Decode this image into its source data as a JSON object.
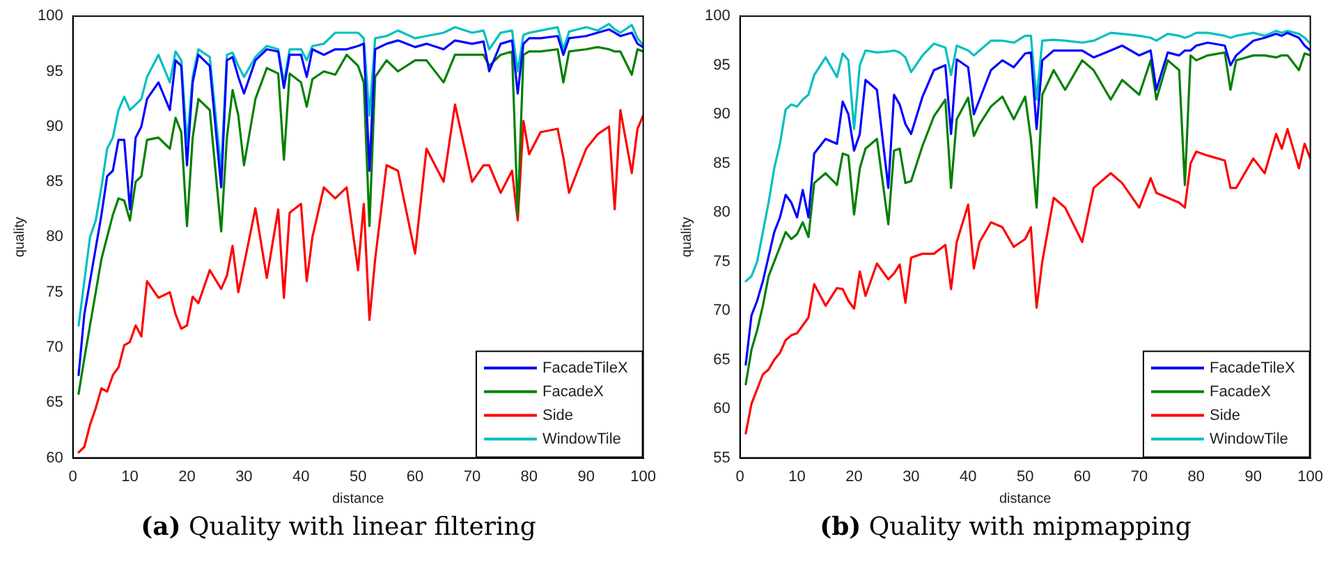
{
  "chart_data": [
    {
      "type": "line",
      "title": "(a) Quality with linear filtering",
      "xlabel": "distance",
      "ylabel": "quality",
      "legend": "bottom right",
      "grid": false,
      "marker": "none",
      "line_style": "solid",
      "xlim": [
        0,
        100
      ],
      "xticks": [
        0,
        10,
        20,
        30,
        40,
        50,
        60,
        70,
        80,
        90,
        100
      ],
      "ylim": [
        60,
        100
      ],
      "yticks": [
        60,
        65,
        70,
        75,
        80,
        85,
        90,
        95,
        100
      ],
      "x": [
        1,
        2,
        3,
        4,
        5,
        6,
        7,
        8,
        9,
        10,
        11,
        12,
        13,
        15,
        17,
        18,
        19,
        20,
        21,
        22,
        24,
        26,
        27,
        28,
        29,
        30,
        32,
        34,
        36,
        37,
        38,
        40,
        41,
        42,
        44,
        46,
        48,
        50,
        51,
        52,
        53,
        55,
        57,
        60,
        62,
        65,
        67,
        70,
        72,
        73,
        75,
        77,
        78,
        79,
        80,
        82,
        85,
        86,
        87,
        90,
        92,
        94,
        95,
        96,
        98,
        99,
        100
      ],
      "series": [
        {
          "name": "FacadeTileX",
          "color": "#0000ff",
          "values": [
            67.5,
            73,
            76,
            79,
            82,
            85.5,
            86,
            88.8,
            88.8,
            82.5,
            89,
            90,
            92.5,
            94,
            91.5,
            96,
            95.5,
            86.5,
            94,
            96.5,
            95.5,
            84.5,
            96,
            96.3,
            94.5,
            93,
            96,
            97,
            96.8,
            93.5,
            96.5,
            96.5,
            94.5,
            97,
            96.5,
            97,
            97,
            97.3,
            97.5,
            86,
            97,
            97.5,
            97.8,
            97.2,
            97.5,
            97,
            97.8,
            97.5,
            97.7,
            95,
            97.5,
            97.8,
            93,
            97.5,
            98,
            98,
            98.2,
            96.5,
            98,
            98.2,
            98.5,
            98.8,
            98.5,
            98.2,
            98.5,
            97.5,
            97.2
          ]
        },
        {
          "name": "FacadeX",
          "color": "#008000",
          "values": [
            65.8,
            69,
            72,
            75,
            78,
            80,
            82,
            83.5,
            83.3,
            81.5,
            85,
            85.5,
            88.8,
            89,
            88,
            90.8,
            89.5,
            81,
            89,
            92.5,
            91.5,
            80.5,
            89,
            93.3,
            91,
            86.5,
            92.5,
            95.3,
            94.8,
            87,
            94.8,
            94,
            91.8,
            94.3,
            95,
            94.7,
            96.5,
            95.5,
            94,
            81,
            94.5,
            96,
            95,
            96,
            96,
            94,
            96.5,
            96.5,
            96.5,
            95.5,
            96.5,
            96.8,
            82,
            96.5,
            96.8,
            96.8,
            97,
            94,
            96.8,
            97,
            97.2,
            97,
            96.8,
            96.8,
            94.7,
            97,
            96.8
          ]
        },
        {
          "name": "Side",
          "color": "#ff0000",
          "values": [
            60.5,
            61,
            63,
            64.5,
            66.3,
            66,
            67.5,
            68.2,
            70.2,
            70.5,
            72,
            71,
            76,
            74.5,
            75,
            73,
            71.7,
            72,
            74.6,
            74,
            77,
            75.3,
            76.5,
            79.2,
            75,
            77.5,
            82.6,
            76.3,
            82.5,
            74.5,
            82.2,
            83,
            76,
            80,
            84.5,
            83.5,
            84.5,
            77,
            83,
            72.5,
            78,
            86.5,
            86,
            78.5,
            88,
            85,
            92,
            85,
            86.5,
            86.5,
            84,
            86,
            81.5,
            90.5,
            87.5,
            89.5,
            89.8,
            87.2,
            84,
            88,
            89.3,
            90,
            82.5,
            91.5,
            85.8,
            89.8,
            91
          ]
        },
        {
          "name": "WindowTile",
          "color": "#00bfbf",
          "values": [
            72,
            76,
            80,
            81.5,
            84.5,
            88,
            89,
            91.5,
            92.7,
            91.5,
            92,
            92.5,
            94.5,
            96.5,
            94,
            96.8,
            96,
            88.5,
            94.5,
            97,
            96.3,
            86,
            96.5,
            96.7,
            95.5,
            94.5,
            96.3,
            97.3,
            97,
            94,
            97,
            97,
            96,
            97.3,
            97.5,
            98.5,
            98.5,
            98.5,
            98,
            91,
            98,
            98.2,
            98.7,
            98,
            98.2,
            98.5,
            99,
            98.5,
            98.7,
            97,
            98.5,
            98.7,
            95,
            98.3,
            98.5,
            98.7,
            99,
            97,
            98.6,
            99,
            98.7,
            99.3,
            98.8,
            98.5,
            99.2,
            98,
            97.4
          ]
        }
      ]
    },
    {
      "type": "line",
      "title": "(b) Quality with mipmapping",
      "xlabel": "distance",
      "ylabel": "quality",
      "legend": "bottom right",
      "grid": false,
      "marker": "none",
      "line_style": "solid",
      "xlim": [
        0,
        100
      ],
      "xticks": [
        0,
        10,
        20,
        30,
        40,
        50,
        60,
        70,
        80,
        90,
        100
      ],
      "ylim": [
        55,
        100
      ],
      "yticks": [
        55,
        60,
        65,
        70,
        75,
        80,
        85,
        90,
        95,
        100
      ],
      "x": [
        1,
        2,
        3,
        4,
        5,
        6,
        7,
        8,
        9,
        10,
        11,
        12,
        13,
        15,
        17,
        18,
        19,
        20,
        21,
        22,
        24,
        26,
        27,
        28,
        29,
        30,
        32,
        34,
        36,
        37,
        38,
        40,
        41,
        42,
        44,
        46,
        48,
        50,
        51,
        52,
        53,
        55,
        57,
        60,
        62,
        65,
        67,
        70,
        72,
        73,
        75,
        77,
        78,
        79,
        80,
        82,
        85,
        86,
        87,
        90,
        92,
        94,
        95,
        96,
        98,
        99,
        100
      ],
      "series": [
        {
          "name": "FacadeTileX",
          "color": "#0000ff",
          "values": [
            64.5,
            69.5,
            71,
            73,
            75.5,
            78,
            79.5,
            81.8,
            81,
            79.5,
            82.3,
            79.5,
            86,
            87.5,
            87,
            91.3,
            90,
            86.3,
            88,
            93.5,
            92.5,
            82.5,
            92,
            91,
            89,
            88,
            91.8,
            94.5,
            95,
            88,
            95.6,
            94.8,
            90,
            91.5,
            94.5,
            95.5,
            94.8,
            96.2,
            96.3,
            88.5,
            95.5,
            96.5,
            96.5,
            96.5,
            95.8,
            96.5,
            97,
            96,
            96.5,
            92.5,
            96.3,
            96,
            96.5,
            96.5,
            97,
            97.3,
            97,
            95,
            96,
            97.5,
            97.8,
            98.2,
            98,
            98.3,
            97.8,
            97,
            96.5
          ]
        },
        {
          "name": "FacadeX",
          "color": "#008000",
          "values": [
            62.5,
            66,
            68,
            70.5,
            73.5,
            75,
            76.5,
            78,
            77.3,
            77.8,
            79,
            77.5,
            83,
            84,
            82.8,
            86,
            85.8,
            79.8,
            84.5,
            86.5,
            87.5,
            78.8,
            86.3,
            86.5,
            83,
            83.2,
            86.8,
            89.8,
            91.5,
            82.5,
            89.5,
            91.7,
            87.8,
            89,
            90.8,
            91.8,
            89.5,
            91.8,
            87.5,
            80.5,
            92,
            94.5,
            92.5,
            95.5,
            94.5,
            91.5,
            93.5,
            92,
            95.5,
            91.5,
            95.5,
            94.5,
            82.8,
            96,
            95.5,
            96,
            96.3,
            92.5,
            95.5,
            96,
            96,
            95.8,
            96,
            96,
            94.5,
            96.2,
            96
          ]
        },
        {
          "name": "Side",
          "color": "#ff0000",
          "values": [
            57.5,
            60.5,
            62,
            63.5,
            64,
            65,
            65.7,
            67,
            67.5,
            67.7,
            68.5,
            69.3,
            72.7,
            70.5,
            72.3,
            72.2,
            71,
            70.2,
            74,
            71.5,
            74.8,
            73.2,
            73.8,
            74.7,
            70.8,
            75.4,
            75.8,
            75.8,
            76.7,
            72.2,
            77,
            80.8,
            74.3,
            77,
            79,
            78.5,
            76.5,
            77.3,
            78.5,
            70.3,
            75,
            81.5,
            80.5,
            77,
            82.5,
            84,
            83,
            80.5,
            83.5,
            82,
            81.5,
            81,
            80.5,
            85,
            86.2,
            85.8,
            85.3,
            82.5,
            82.5,
            85.5,
            84,
            88,
            86.5,
            88.5,
            84.5,
            87,
            85.5
          ]
        },
        {
          "name": "WindowTile",
          "color": "#00bfbf",
          "values": [
            73,
            73.5,
            75,
            78,
            81,
            84.5,
            87,
            90.5,
            91,
            90.8,
            91.5,
            92,
            94,
            95.8,
            93.8,
            96.2,
            95.5,
            88.5,
            95,
            96.5,
            96.3,
            96.4,
            96.5,
            96.3,
            95.8,
            94.3,
            96,
            97.2,
            96.8,
            94,
            97,
            96.5,
            96,
            96.5,
            97.5,
            97.5,
            97.3,
            98,
            98,
            91.5,
            97.5,
            97.6,
            97.5,
            97.3,
            97.5,
            98.3,
            98.2,
            98,
            97.8,
            97.5,
            98.2,
            98,
            97.8,
            98,
            98.3,
            98.3,
            98,
            97.8,
            98,
            98.3,
            98,
            98.5,
            98.3,
            98.5,
            98.2,
            97.8,
            97.2
          ]
        }
      ]
    }
  ]
}
